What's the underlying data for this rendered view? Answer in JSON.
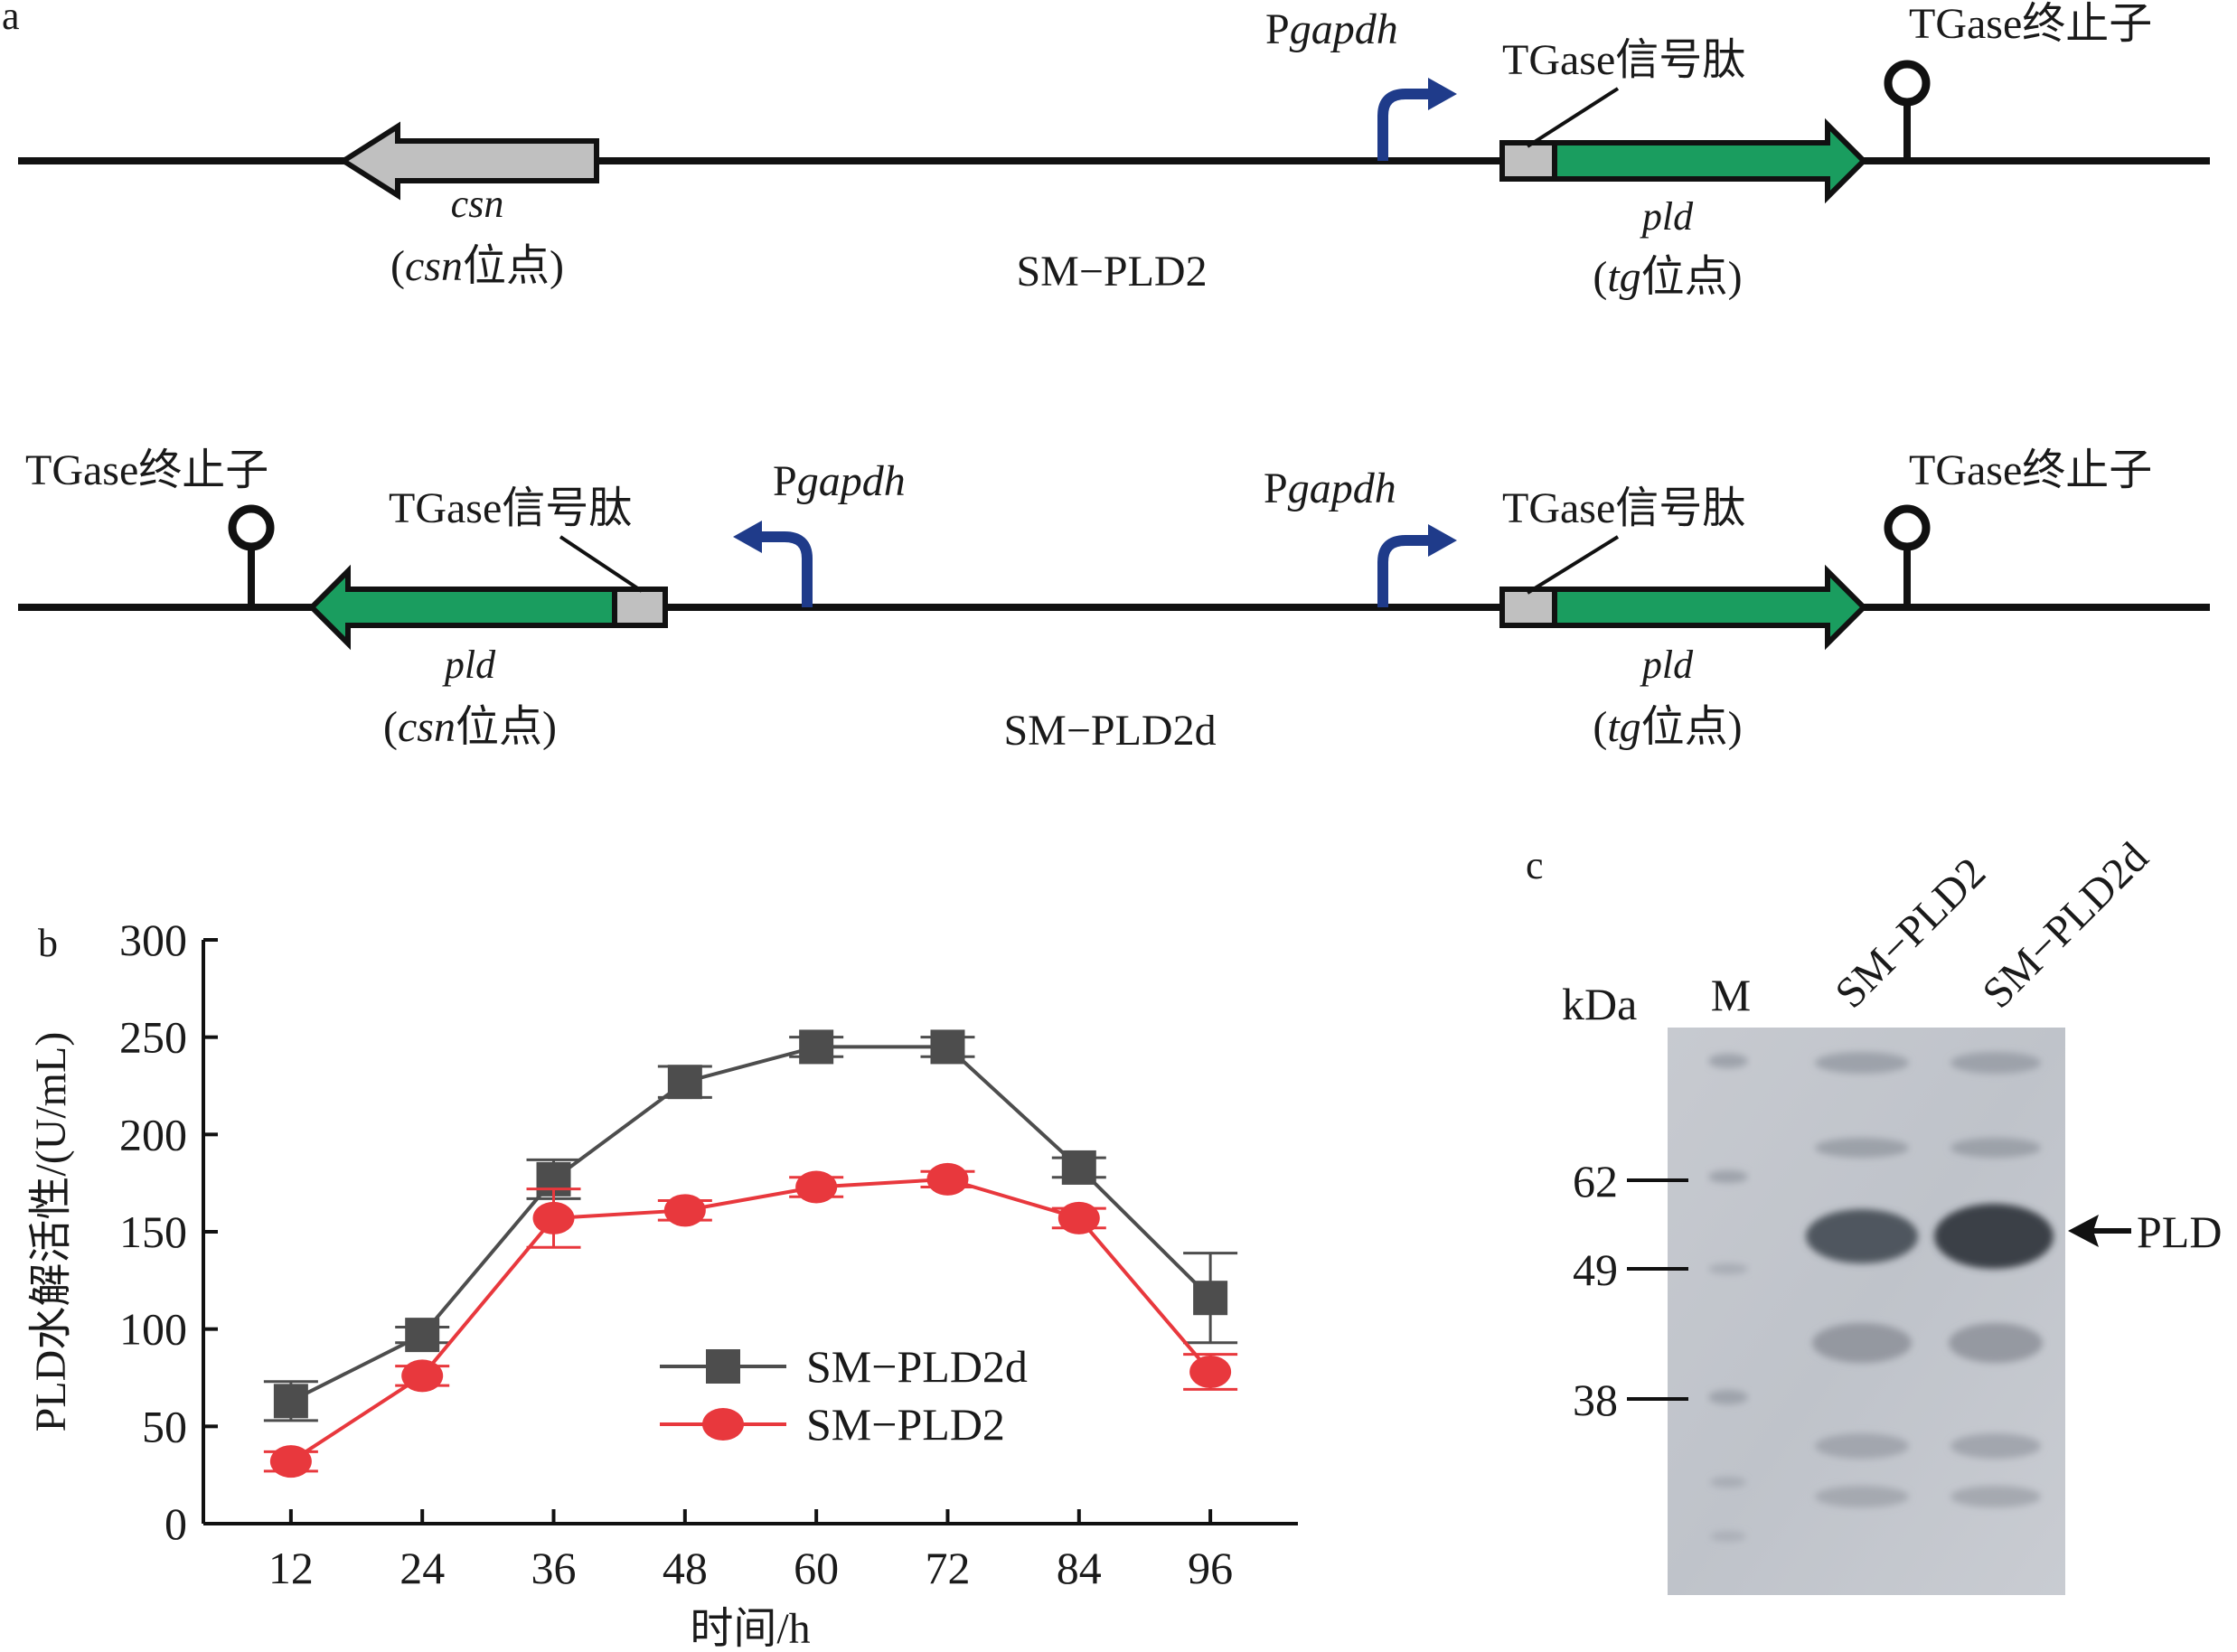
{
  "panel_a": {
    "label": "a",
    "construct1": {
      "name": "SM−PLD2",
      "csn_gene": "csn",
      "csn_locus": {
        "open": "(",
        "italic": "csn",
        "rest": "位点)"
      },
      "promoter": {
        "prefix": "P",
        "italic": "gapdh"
      },
      "signal_peptide": "TGase信号肽",
      "terminator": "TGase终止子",
      "pld_gene": "pld",
      "tg_locus": {
        "open": "(",
        "italic": "tg",
        "rest": "位点)"
      }
    },
    "construct2": {
      "name": "SM−PLD2d",
      "left_terminator": "TGase终止子",
      "left_signal_peptide": "TGase信号肽",
      "left_promoter": {
        "prefix": "P",
        "italic": "gapdh"
      },
      "left_pld_gene": "pld",
      "csn_locus": {
        "open": "(",
        "italic": "csn",
        "rest": "位点)"
      },
      "right_promoter": {
        "prefix": "P",
        "italic": "gapdh"
      },
      "right_signal_peptide": "TGase信号肽",
      "right_terminator": "TGase终止子",
      "right_pld_gene": "pld",
      "tg_locus": {
        "open": "(",
        "italic": "tg",
        "rest": "位点)"
      }
    }
  },
  "panel_b": {
    "label": "b",
    "chart_data": {
      "type": "line",
      "title": "",
      "xlabel": "时间/h",
      "ylabel": "PLD水解活性/(U/mL)",
      "x": [
        12,
        24,
        36,
        48,
        60,
        72,
        84,
        96
      ],
      "xlim": [
        4,
        104
      ],
      "ylim": [
        0,
        300
      ],
      "yticks": [
        0,
        50,
        100,
        150,
        200,
        250,
        300
      ],
      "grid": false,
      "legend_position": "lower-center",
      "series": [
        {
          "name": "SM−PLD2d",
          "marker": "square",
          "color": "#4d4d4d",
          "values": [
            63,
            97,
            177,
            227,
            245,
            245,
            183,
            116
          ],
          "errors": [
            10,
            4,
            10,
            8,
            5,
            5,
            5,
            23
          ]
        },
        {
          "name": "SM−PLD2",
          "marker": "circle",
          "color": "#e8383d",
          "values": [
            32,
            76,
            157,
            161,
            173,
            177,
            157,
            78
          ],
          "errors": [
            5,
            5,
            15,
            5,
            5,
            4,
            5,
            9
          ]
        }
      ]
    }
  },
  "panel_c": {
    "label": "c",
    "kda_label": "kDa",
    "lanes": [
      "M",
      "SM−PLD2",
      "SM−PLD2d"
    ],
    "markers": [
      "62",
      "49",
      "38"
    ],
    "band_annotation": "PLD"
  }
}
